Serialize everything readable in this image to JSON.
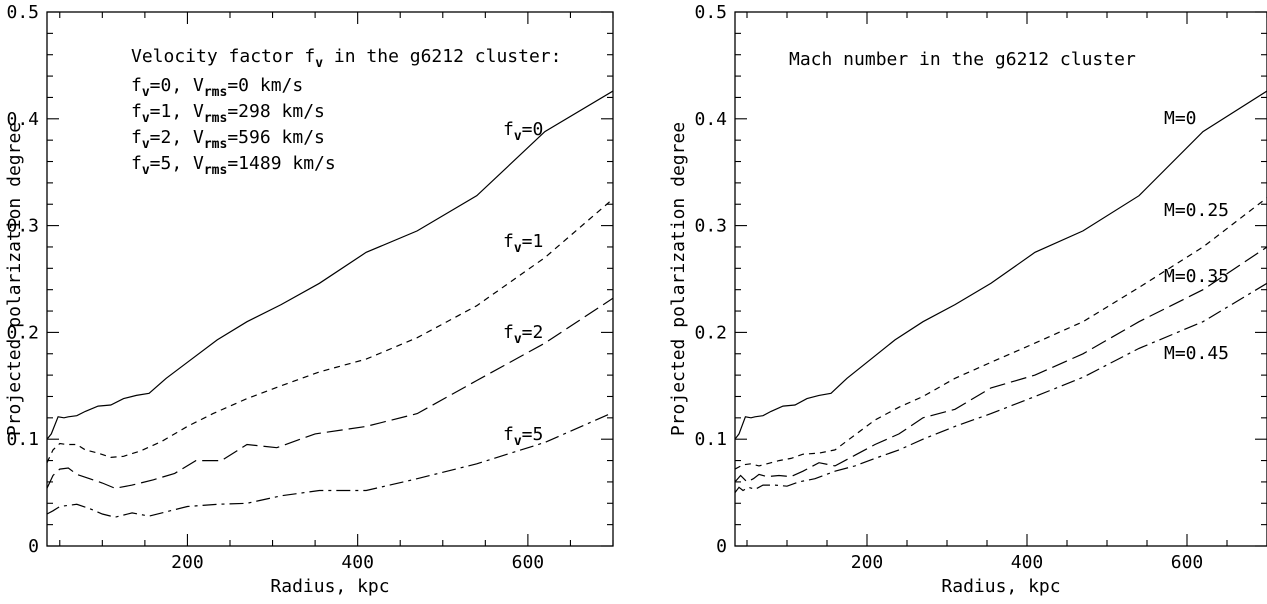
{
  "chart_data": [
    {
      "type": "line",
      "xlabel": "Radius, kpc",
      "ylabel": "Projected polarization degree",
      "xlim": [
        35,
        700
      ],
      "ylim": [
        0,
        0.5
      ],
      "x_major_ticks": [
        200,
        400,
        600
      ],
      "x_tick_labels": [
        "200",
        "400",
        "600"
      ],
      "y_major_ticks": [
        0,
        0.1,
        0.2,
        0.3,
        0.4,
        0.5
      ],
      "y_tick_labels": [
        "0",
        "0.1",
        "0.2",
        "0.3",
        "0.4",
        "0.5"
      ],
      "grid": false,
      "legend_heading": "Velocity factor f",
      "legend_heading_sub": "v",
      "legend_heading_tail": " in the g6212 cluster:",
      "legend_lines": [
        {
          "a": "f",
          "a_sub": "v",
          "b": "=0, V",
          "b_sub": "rms",
          "c": "=0 km/s"
        },
        {
          "a": "f",
          "a_sub": "v",
          "b": "=1, V",
          "b_sub": "rms",
          "c": "=298 km/s"
        },
        {
          "a": "f",
          "a_sub": "v",
          "b": "=2, V",
          "b_sub": "rms",
          "c": "=596 km/s"
        },
        {
          "a": "f",
          "a_sub": "v",
          "b": "=5, V",
          "b_sub": "rms",
          "c": "=1489 km/s"
        }
      ],
      "series": [
        {
          "label_main": "f",
          "label_sub": "v",
          "label_tail": "=0",
          "dash": "solid",
          "x": [
            35,
            40,
            48,
            55,
            60,
            70,
            80,
            95,
            110,
            125,
            140,
            155,
            175,
            200,
            235,
            270,
            310,
            355,
            410,
            470,
            540,
            620,
            700
          ],
          "y": [
            0.1,
            0.105,
            0.121,
            0.12,
            0.121,
            0.122,
            0.126,
            0.131,
            0.132,
            0.138,
            0.141,
            0.143,
            0.157,
            0.172,
            0.193,
            0.21,
            0.226,
            0.246,
            0.275,
            0.295,
            0.328,
            0.388,
            0.426
          ]
        },
        {
          "label_main": "f",
          "label_sub": "v",
          "label_tail": "=1",
          "dash": "short",
          "x": [
            35,
            42,
            50,
            58,
            70,
            80,
            95,
            110,
            125,
            145,
            170,
            200,
            230,
            270,
            310,
            355,
            410,
            470,
            540,
            620,
            700
          ],
          "y": [
            0.078,
            0.09,
            0.096,
            0.095,
            0.095,
            0.09,
            0.087,
            0.083,
            0.084,
            0.089,
            0.098,
            0.112,
            0.124,
            0.138,
            0.15,
            0.163,
            0.175,
            0.195,
            0.225,
            0.27,
            0.325
          ]
        },
        {
          "label_main": "f",
          "label_sub": "v",
          "label_tail": "=2",
          "dash": "long",
          "x": [
            35,
            42,
            50,
            60,
            70,
            85,
            100,
            115,
            135,
            160,
            185,
            210,
            240,
            270,
            305,
            350,
            410,
            470,
            540,
            620,
            700
          ],
          "y": [
            0.054,
            0.066,
            0.072,
            0.073,
            0.067,
            0.063,
            0.059,
            0.054,
            0.057,
            0.062,
            0.068,
            0.08,
            0.08,
            0.095,
            0.092,
            0.105,
            0.112,
            0.124,
            0.155,
            0.19,
            0.232
          ]
        },
        {
          "label_main": "f",
          "label_sub": "v",
          "label_tail": "=5",
          "dash": "dashdot",
          "x": [
            35,
            42,
            50,
            60,
            70,
            85,
            100,
            115,
            135,
            155,
            175,
            200,
            235,
            270,
            310,
            355,
            410,
            470,
            540,
            620,
            700
          ],
          "y": [
            0.03,
            0.033,
            0.037,
            0.038,
            0.039,
            0.035,
            0.03,
            0.027,
            0.031,
            0.028,
            0.032,
            0.037,
            0.039,
            0.04,
            0.047,
            0.052,
            0.052,
            0.063,
            0.077,
            0.097,
            0.125
          ]
        }
      ]
    },
    {
      "type": "line",
      "xlabel": "Radius, kpc",
      "ylabel": "Projected polarization degree",
      "xlim": [
        35,
        700
      ],
      "ylim": [
        0,
        0.5
      ],
      "x_major_ticks": [
        200,
        400,
        600
      ],
      "x_tick_labels": [
        "200",
        "400",
        "600"
      ],
      "y_major_ticks": [
        0,
        0.1,
        0.2,
        0.3,
        0.4,
        0.5
      ],
      "y_tick_labels": [
        "0",
        "0.1",
        "0.2",
        "0.3",
        "0.4",
        "0.5"
      ],
      "grid": false,
      "title": "Mach number in the g6212 cluster",
      "series": [
        {
          "label_main": "M=0",
          "dash": "solid",
          "x": [
            35,
            40,
            48,
            55,
            60,
            70,
            80,
            95,
            110,
            125,
            140,
            155,
            175,
            200,
            235,
            270,
            310,
            355,
            410,
            470,
            540,
            620,
            700
          ],
          "y": [
            0.1,
            0.105,
            0.121,
            0.12,
            0.121,
            0.122,
            0.126,
            0.131,
            0.132,
            0.138,
            0.141,
            0.143,
            0.157,
            0.172,
            0.193,
            0.21,
            0.226,
            0.246,
            0.275,
            0.295,
            0.328,
            0.388,
            0.426
          ]
        },
        {
          "label_main": "M=0.25",
          "dash": "short",
          "x": [
            35,
            45,
            55,
            65,
            75,
            90,
            105,
            120,
            140,
            160,
            185,
            210,
            240,
            270,
            310,
            355,
            410,
            470,
            540,
            620,
            700
          ],
          "y": [
            0.072,
            0.076,
            0.077,
            0.075,
            0.077,
            0.08,
            0.082,
            0.086,
            0.087,
            0.09,
            0.104,
            0.118,
            0.13,
            0.14,
            0.157,
            0.172,
            0.19,
            0.21,
            0.242,
            0.28,
            0.326
          ]
        },
        {
          "label_main": "M=0.35",
          "dash": "long",
          "x": [
            35,
            42,
            50,
            58,
            65,
            75,
            90,
            105,
            120,
            140,
            160,
            185,
            210,
            240,
            270,
            310,
            355,
            410,
            470,
            540,
            620,
            700
          ],
          "y": [
            0.06,
            0.066,
            0.06,
            0.063,
            0.067,
            0.065,
            0.066,
            0.065,
            0.07,
            0.078,
            0.075,
            0.085,
            0.095,
            0.105,
            0.12,
            0.128,
            0.148,
            0.16,
            0.18,
            0.21,
            0.24,
            0.28
          ]
        },
        {
          "label_main": "M=0.45",
          "dash": "dashdot",
          "x": [
            35,
            40,
            45,
            52,
            60,
            70,
            85,
            100,
            115,
            135,
            160,
            185,
            210,
            240,
            270,
            310,
            355,
            410,
            470,
            540,
            620,
            700
          ],
          "y": [
            0.05,
            0.055,
            0.052,
            0.055,
            0.053,
            0.057,
            0.057,
            0.056,
            0.06,
            0.063,
            0.07,
            0.075,
            0.082,
            0.09,
            0.1,
            0.112,
            0.124,
            0.14,
            0.158,
            0.185,
            0.21,
            0.246
          ]
        }
      ]
    }
  ]
}
